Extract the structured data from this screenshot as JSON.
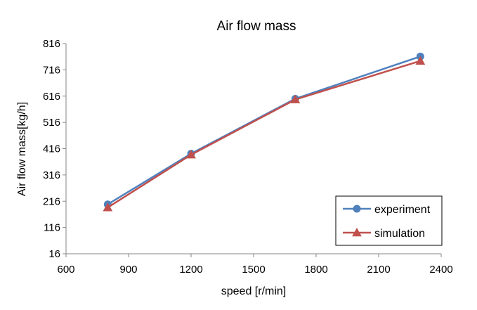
{
  "chart_data": {
    "type": "line",
    "title": "Air flow mass",
    "xlabel": "speed [r/min]",
    "ylabel": "Air flow mass[kg/h]",
    "xlim": [
      600,
      2400
    ],
    "ylim": [
      16,
      816
    ],
    "xticks": [
      600,
      900,
      1200,
      1500,
      1800,
      2100,
      2400
    ],
    "yticks": [
      16,
      116,
      216,
      316,
      416,
      516,
      616,
      716,
      816
    ],
    "grid": false,
    "legend_position": "bottom-right",
    "series": [
      {
        "name": "experiment",
        "color": "#4F81BD",
        "marker": "circle",
        "x": [
          800,
          1200,
          1700,
          2300
        ],
        "y": [
          204,
          397,
          606,
          767
        ]
      },
      {
        "name": "simulation",
        "color": "#C0504D",
        "marker": "triangle",
        "x": [
          800,
          1200,
          1700,
          2300
        ],
        "y": [
          192,
          393,
          603,
          750
        ]
      }
    ]
  }
}
